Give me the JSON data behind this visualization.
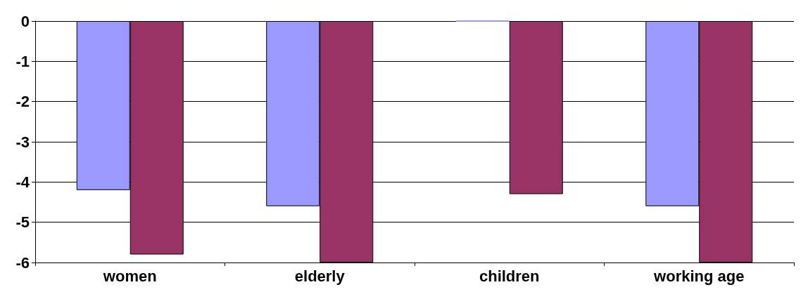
{
  "chart_data": {
    "type": "bar",
    "categories": [
      "women",
      "elderly",
      "children",
      "working age"
    ],
    "series": [
      {
        "color": "#9999ff",
        "values": [
          -4.2,
          -4.6,
          0,
          -4.6
        ]
      },
      {
        "color": "#993366",
        "values": [
          -5.8,
          -6.0,
          -4.3,
          -6.0
        ]
      }
    ],
    "ylim": [
      -6,
      0
    ],
    "yticks": [
      -6,
      -5,
      -4,
      -3,
      -2,
      -1,
      0
    ],
    "grid": "y"
  }
}
